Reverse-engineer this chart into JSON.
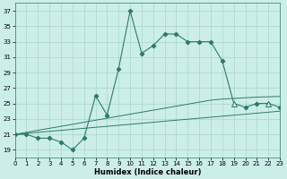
{
  "xlabel": "Humidex (Indice chaleur)",
  "x": [
    0,
    1,
    2,
    3,
    4,
    5,
    6,
    7,
    8,
    9,
    10,
    11,
    12,
    13,
    14,
    15,
    16,
    17,
    18,
    19,
    20,
    21,
    22,
    23
  ],
  "y_main": [
    21,
    21,
    20.5,
    20.5,
    20,
    19,
    20.5,
    26,
    23.5,
    29.5,
    37,
    31.5,
    32.5,
    34,
    34,
    33,
    33,
    33,
    30.5,
    25,
    24.5,
    25,
    25,
    24.5
  ],
  "y_line1": [
    21.0,
    21.13,
    21.26,
    21.39,
    21.52,
    21.65,
    21.78,
    21.91,
    22.04,
    22.17,
    22.3,
    22.43,
    22.56,
    22.7,
    22.83,
    22.96,
    23.09,
    23.22,
    23.35,
    23.48,
    23.61,
    23.74,
    23.87,
    24.0
  ],
  "y_line2": [
    21.0,
    21.26,
    21.52,
    21.78,
    22.04,
    22.3,
    22.57,
    22.83,
    23.09,
    23.35,
    23.61,
    23.87,
    24.13,
    24.39,
    24.65,
    24.91,
    25.17,
    25.43,
    25.57,
    25.65,
    25.74,
    25.82,
    25.87,
    25.91
  ],
  "line_color": "#2d7a6a",
  "bg_color": "#cceee8",
  "grid_color": "#aad4ce",
  "ylim": [
    18,
    38
  ],
  "yticks": [
    19,
    21,
    23,
    25,
    27,
    29,
    31,
    33,
    35,
    37
  ],
  "xlim": [
    0,
    23
  ],
  "marker_main": "D",
  "marker_end": "^"
}
